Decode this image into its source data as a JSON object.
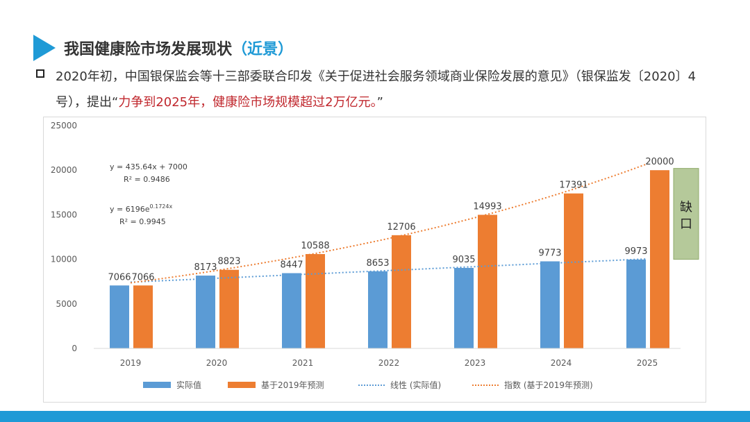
{
  "slide": {
    "title": "我国健康险市场发展现状",
    "title_accent": "（近景）",
    "paragraph_a": "2020年初，中国银保监会等十三部委联合印发《关于促进社会服务领域商业保险发展的意见》（银保监发〔2020〕4号），提出“",
    "paragraph_red": "力争到2025年，健康险市场规模超过2万亿元。",
    "paragraph_b": "”"
  },
  "colors": {
    "accent": "#1f9ad6",
    "bar_actual": "#5b9bd5",
    "bar_forecast": "#ed7d31",
    "gap_fill": "#b5c99a",
    "red_text": "#c0272d"
  },
  "chart_data": {
    "type": "bar",
    "categories": [
      "2019",
      "2020",
      "2021",
      "2022",
      "2023",
      "2024",
      "2025"
    ],
    "series": [
      {
        "name": "实际值",
        "values": [
          7066,
          8173,
          8447,
          8653,
          9035,
          9773,
          9973
        ]
      },
      {
        "name": "基于2019年预测",
        "values": [
          7066,
          8823,
          10588,
          12706,
          14993,
          17391,
          20000
        ]
      }
    ],
    "trendlines": [
      {
        "name": "线性 (实际值)",
        "type": "linear",
        "slope": 435.64,
        "intercept": 7000
      },
      {
        "name": "指数 (基于2019年预测)",
        "type": "exponential",
        "a": 6196,
        "b": 0.1724
      }
    ],
    "equations": [
      {
        "line1": "y = 435.64x + 7000",
        "line2": "R² = 0.9486"
      },
      {
        "line1_base": "y = 6196e",
        "line1_exp": "0.1724x",
        "line2": "R² = 0.9945"
      }
    ],
    "y_ticks": [
      "0",
      "5000",
      "10000",
      "15000",
      "20000",
      "25000"
    ],
    "ylim": [
      0,
      25000
    ],
    "gap_box": {
      "label_line1": "缺",
      "label_line2": "口",
      "from": 10000,
      "to": 20200
    },
    "legend": {
      "position": "bottom",
      "items": [
        "实际值",
        "基于2019年预测",
        "线性 (实际值)",
        "指数 (基于2019年预测)"
      ]
    },
    "grid": false
  }
}
